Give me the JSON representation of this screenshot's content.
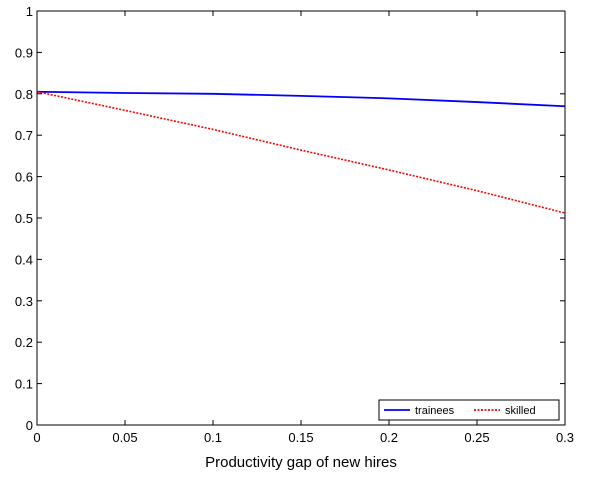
{
  "chart_data": {
    "type": "line",
    "title": "",
    "xlabel": "Productivity gap of new hires",
    "ylabel": "",
    "xlim": [
      0,
      0.3
    ],
    "ylim": [
      0,
      1
    ],
    "x_ticks": [
      0,
      0.05,
      0.1,
      0.15,
      0.2,
      0.25,
      0.3
    ],
    "x_tick_labels": [
      "0",
      "0.05",
      "0.1",
      "0.15",
      "0.2",
      "0.25",
      "0.3"
    ],
    "y_ticks": [
      0,
      0.1,
      0.2,
      0.3,
      0.4,
      0.5,
      0.6,
      0.7,
      0.8,
      0.9,
      1
    ],
    "y_tick_labels": [
      "0",
      "0.1",
      "0.2",
      "0.3",
      "0.4",
      "0.5",
      "0.6",
      "0.7",
      "0.8",
      "0.9",
      "1"
    ],
    "grid": false,
    "legend_position": "bottom-right",
    "x": [
      0,
      0.05,
      0.1,
      0.15,
      0.2,
      0.25,
      0.3
    ],
    "series": [
      {
        "name": "trainees",
        "color": "#0000ff",
        "line_style": "solid",
        "values": [
          0.805,
          0.802,
          0.8,
          0.795,
          0.789,
          0.78,
          0.77
        ]
      },
      {
        "name": "skilled",
        "color": "#ff0000",
        "line_style": "dotted",
        "values": [
          0.805,
          0.76,
          0.714,
          0.664,
          0.616,
          0.566,
          0.512
        ]
      }
    ]
  }
}
